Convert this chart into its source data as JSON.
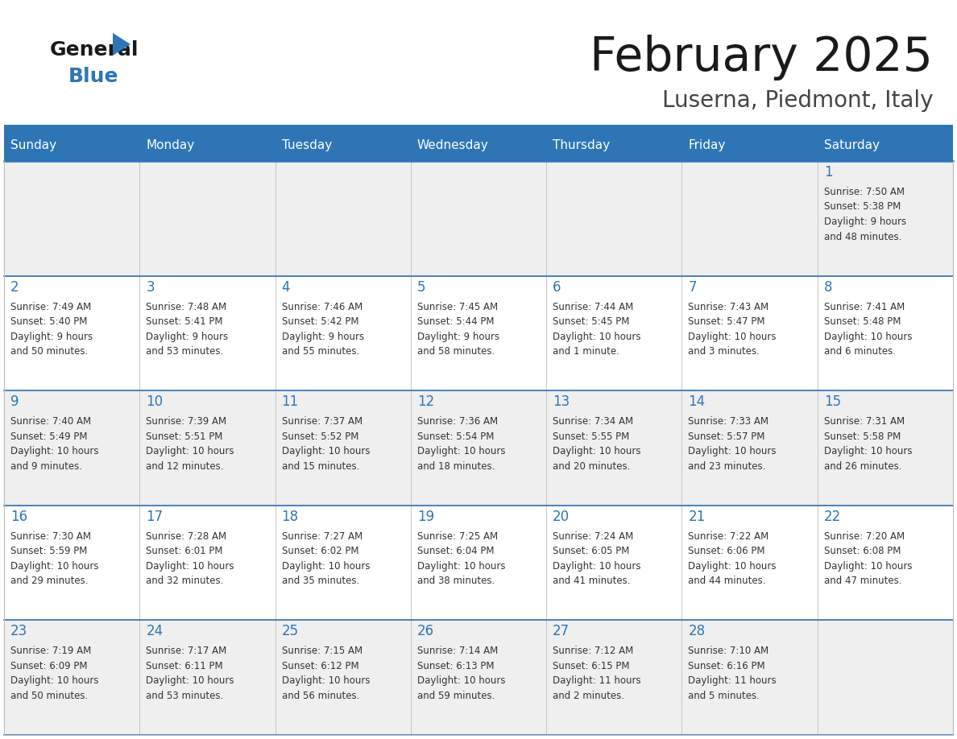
{
  "title": "February 2025",
  "subtitle": "Luserna, Piedmont, Italy",
  "days_of_week": [
    "Sunday",
    "Monday",
    "Tuesday",
    "Wednesday",
    "Thursday",
    "Friday",
    "Saturday"
  ],
  "header_bg": "#2E75B6",
  "header_text": "#FFFFFF",
  "cell_bg_odd": "#EFEFEF",
  "cell_bg_even": "#FFFFFF",
  "day_num_color": "#2E75B6",
  "text_color": "#333333",
  "border_color": "#BBBBBB",
  "row_line_color": "#2E75B6",
  "calendar_data": [
    [
      {
        "day": null,
        "info": null
      },
      {
        "day": null,
        "info": null
      },
      {
        "day": null,
        "info": null
      },
      {
        "day": null,
        "info": null
      },
      {
        "day": null,
        "info": null
      },
      {
        "day": null,
        "info": null
      },
      {
        "day": 1,
        "info": "Sunrise: 7:50 AM\nSunset: 5:38 PM\nDaylight: 9 hours\nand 48 minutes."
      }
    ],
    [
      {
        "day": 2,
        "info": "Sunrise: 7:49 AM\nSunset: 5:40 PM\nDaylight: 9 hours\nand 50 minutes."
      },
      {
        "day": 3,
        "info": "Sunrise: 7:48 AM\nSunset: 5:41 PM\nDaylight: 9 hours\nand 53 minutes."
      },
      {
        "day": 4,
        "info": "Sunrise: 7:46 AM\nSunset: 5:42 PM\nDaylight: 9 hours\nand 55 minutes."
      },
      {
        "day": 5,
        "info": "Sunrise: 7:45 AM\nSunset: 5:44 PM\nDaylight: 9 hours\nand 58 minutes."
      },
      {
        "day": 6,
        "info": "Sunrise: 7:44 AM\nSunset: 5:45 PM\nDaylight: 10 hours\nand 1 minute."
      },
      {
        "day": 7,
        "info": "Sunrise: 7:43 AM\nSunset: 5:47 PM\nDaylight: 10 hours\nand 3 minutes."
      },
      {
        "day": 8,
        "info": "Sunrise: 7:41 AM\nSunset: 5:48 PM\nDaylight: 10 hours\nand 6 minutes."
      }
    ],
    [
      {
        "day": 9,
        "info": "Sunrise: 7:40 AM\nSunset: 5:49 PM\nDaylight: 10 hours\nand 9 minutes."
      },
      {
        "day": 10,
        "info": "Sunrise: 7:39 AM\nSunset: 5:51 PM\nDaylight: 10 hours\nand 12 minutes."
      },
      {
        "day": 11,
        "info": "Sunrise: 7:37 AM\nSunset: 5:52 PM\nDaylight: 10 hours\nand 15 minutes."
      },
      {
        "day": 12,
        "info": "Sunrise: 7:36 AM\nSunset: 5:54 PM\nDaylight: 10 hours\nand 18 minutes."
      },
      {
        "day": 13,
        "info": "Sunrise: 7:34 AM\nSunset: 5:55 PM\nDaylight: 10 hours\nand 20 minutes."
      },
      {
        "day": 14,
        "info": "Sunrise: 7:33 AM\nSunset: 5:57 PM\nDaylight: 10 hours\nand 23 minutes."
      },
      {
        "day": 15,
        "info": "Sunrise: 7:31 AM\nSunset: 5:58 PM\nDaylight: 10 hours\nand 26 minutes."
      }
    ],
    [
      {
        "day": 16,
        "info": "Sunrise: 7:30 AM\nSunset: 5:59 PM\nDaylight: 10 hours\nand 29 minutes."
      },
      {
        "day": 17,
        "info": "Sunrise: 7:28 AM\nSunset: 6:01 PM\nDaylight: 10 hours\nand 32 minutes."
      },
      {
        "day": 18,
        "info": "Sunrise: 7:27 AM\nSunset: 6:02 PM\nDaylight: 10 hours\nand 35 minutes."
      },
      {
        "day": 19,
        "info": "Sunrise: 7:25 AM\nSunset: 6:04 PM\nDaylight: 10 hours\nand 38 minutes."
      },
      {
        "day": 20,
        "info": "Sunrise: 7:24 AM\nSunset: 6:05 PM\nDaylight: 10 hours\nand 41 minutes."
      },
      {
        "day": 21,
        "info": "Sunrise: 7:22 AM\nSunset: 6:06 PM\nDaylight: 10 hours\nand 44 minutes."
      },
      {
        "day": 22,
        "info": "Sunrise: 7:20 AM\nSunset: 6:08 PM\nDaylight: 10 hours\nand 47 minutes."
      }
    ],
    [
      {
        "day": 23,
        "info": "Sunrise: 7:19 AM\nSunset: 6:09 PM\nDaylight: 10 hours\nand 50 minutes."
      },
      {
        "day": 24,
        "info": "Sunrise: 7:17 AM\nSunset: 6:11 PM\nDaylight: 10 hours\nand 53 minutes."
      },
      {
        "day": 25,
        "info": "Sunrise: 7:15 AM\nSunset: 6:12 PM\nDaylight: 10 hours\nand 56 minutes."
      },
      {
        "day": 26,
        "info": "Sunrise: 7:14 AM\nSunset: 6:13 PM\nDaylight: 10 hours\nand 59 minutes."
      },
      {
        "day": 27,
        "info": "Sunrise: 7:12 AM\nSunset: 6:15 PM\nDaylight: 11 hours\nand 2 minutes."
      },
      {
        "day": 28,
        "info": "Sunrise: 7:10 AM\nSunset: 6:16 PM\nDaylight: 11 hours\nand 5 minutes."
      },
      {
        "day": null,
        "info": null
      }
    ]
  ]
}
